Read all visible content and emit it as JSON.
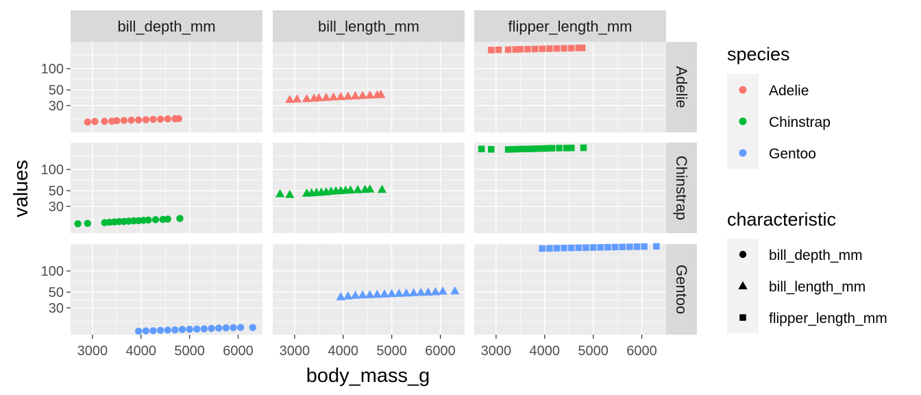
{
  "chart_data": {
    "type": "scatter",
    "xlabel": "body_mass_g",
    "ylabel": "values",
    "x_ticks": [
      3000,
      4000,
      5000,
      6000
    ],
    "y_ticks": [
      30,
      50,
      100
    ],
    "y_scale": "log",
    "grid": true,
    "legend_position": "right",
    "facet_columns": [
      "bill_depth_mm",
      "bill_length_mm",
      "flipper_length_mm"
    ],
    "facet_rows": [
      "Adelie",
      "Chinstrap",
      "Gentoo"
    ],
    "colors": {
      "Adelie": "#F8766D",
      "Chinstrap": "#00BA38",
      "Gentoo": "#619CFF"
    },
    "shapes": {
      "bill_depth_mm": "circle",
      "bill_length_mm": "triangle",
      "flipper_length_mm": "square"
    },
    "legends": [
      {
        "title": "species",
        "kind": "color",
        "items": [
          "Adelie",
          "Chinstrap",
          "Gentoo"
        ]
      },
      {
        "title": "characteristic",
        "kind": "shape",
        "items": [
          "bill_depth_mm",
          "bill_length_mm",
          "flipper_length_mm"
        ]
      }
    ],
    "series": [
      {
        "species": "Adelie",
        "characteristic": "bill_depth_mm",
        "body_mass_g": [
          2900,
          3050,
          3250,
          3400,
          3500,
          3650,
          3800,
          3950,
          4100,
          4250,
          4400,
          4550,
          4700,
          4775
        ],
        "values": [
          17.5,
          17.8,
          17.9,
          18.0,
          18.3,
          18.4,
          18.6,
          18.7,
          18.9,
          19.1,
          19.2,
          19.4,
          19.5,
          19.6
        ]
      },
      {
        "species": "Adelie",
        "characteristic": "bill_length_mm",
        "body_mass_g": [
          2900,
          3050,
          3250,
          3400,
          3500,
          3650,
          3800,
          3950,
          4100,
          4250,
          4400,
          4550,
          4700,
          4775
        ],
        "values": [
          36.5,
          37.0,
          37.5,
          38.0,
          38.5,
          39.0,
          39.5,
          40.0,
          40.5,
          41.0,
          41.5,
          42.0,
          42.5,
          43.0
        ]
      },
      {
        "species": "Adelie",
        "characteristic": "flipper_length_mm",
        "body_mass_g": [
          2900,
          3050,
          3250,
          3400,
          3500,
          3650,
          3800,
          3950,
          4100,
          4250,
          4400,
          4550,
          4700,
          4775
        ],
        "values": [
          184,
          185,
          186,
          187,
          188,
          189,
          190,
          191,
          192,
          193,
          194,
          195,
          196,
          197
        ]
      },
      {
        "species": "Chinstrap",
        "characteristic": "bill_depth_mm",
        "body_mass_g": [
          2700,
          2900,
          3250,
          3350,
          3450,
          3550,
          3650,
          3750,
          3850,
          3950,
          4050,
          4150,
          4300,
          4450,
          4550,
          4800
        ],
        "values": [
          17.0,
          17.2,
          17.6,
          17.8,
          18.0,
          18.2,
          18.3,
          18.5,
          18.7,
          18.8,
          19.0,
          19.2,
          19.4,
          19.6,
          19.8,
          20.2
        ]
      },
      {
        "species": "Chinstrap",
        "characteristic": "bill_length_mm",
        "body_mass_g": [
          2700,
          2900,
          3250,
          3350,
          3450,
          3550,
          3650,
          3750,
          3850,
          3950,
          4050,
          4150,
          4300,
          4450,
          4550,
          4800
        ],
        "values": [
          45.0,
          44.0,
          46.0,
          46.5,
          47.0,
          47.5,
          48.0,
          49.0,
          49.5,
          50.0,
          50.5,
          51.0,
          51.5,
          52.0,
          52.5,
          52.0
        ]
      },
      {
        "species": "Chinstrap",
        "characteristic": "flipper_length_mm",
        "body_mass_g": [
          2700,
          2900,
          3250,
          3350,
          3450,
          3550,
          3650,
          3750,
          3850,
          3950,
          4050,
          4150,
          4300,
          4450,
          4550,
          4800
        ],
        "values": [
          195,
          193,
          192,
          193,
          194,
          195,
          195,
          196,
          197,
          198,
          199,
          200,
          201,
          201,
          202,
          203
        ]
      },
      {
        "species": "Gentoo",
        "characteristic": "bill_depth_mm",
        "body_mass_g": [
          3950,
          4100,
          4250,
          4400,
          4550,
          4700,
          4850,
          5000,
          5150,
          5300,
          5450,
          5600,
          5750,
          5900,
          6050,
          6300
        ],
        "values": [
          14.0,
          14.1,
          14.2,
          14.4,
          14.5,
          14.6,
          14.8,
          14.9,
          15.0,
          15.1,
          15.3,
          15.5,
          15.6,
          15.7,
          15.8,
          15.8
        ]
      },
      {
        "species": "Gentoo",
        "characteristic": "bill_length_mm",
        "body_mass_g": [
          3950,
          4100,
          4250,
          4400,
          4550,
          4700,
          4850,
          5000,
          5150,
          5300,
          5450,
          5600,
          5750,
          5900,
          6050,
          6300
        ],
        "values": [
          43.0,
          44.0,
          45.0,
          45.5,
          46.0,
          46.5,
          47.0,
          47.5,
          48.0,
          48.5,
          49.0,
          49.5,
          50.0,
          50.5,
          51.5,
          52.0
        ]
      },
      {
        "species": "Gentoo",
        "characteristic": "flipper_length_mm",
        "body_mass_g": [
          3950,
          4100,
          4250,
          4400,
          4550,
          4700,
          4850,
          5000,
          5150,
          5300,
          5450,
          5600,
          5750,
          5900,
          6050,
          6300
        ],
        "values": [
          208,
          209,
          210,
          211,
          212,
          213,
          214,
          215,
          216,
          217,
          218,
          219,
          220,
          221,
          222,
          223
        ]
      }
    ]
  }
}
